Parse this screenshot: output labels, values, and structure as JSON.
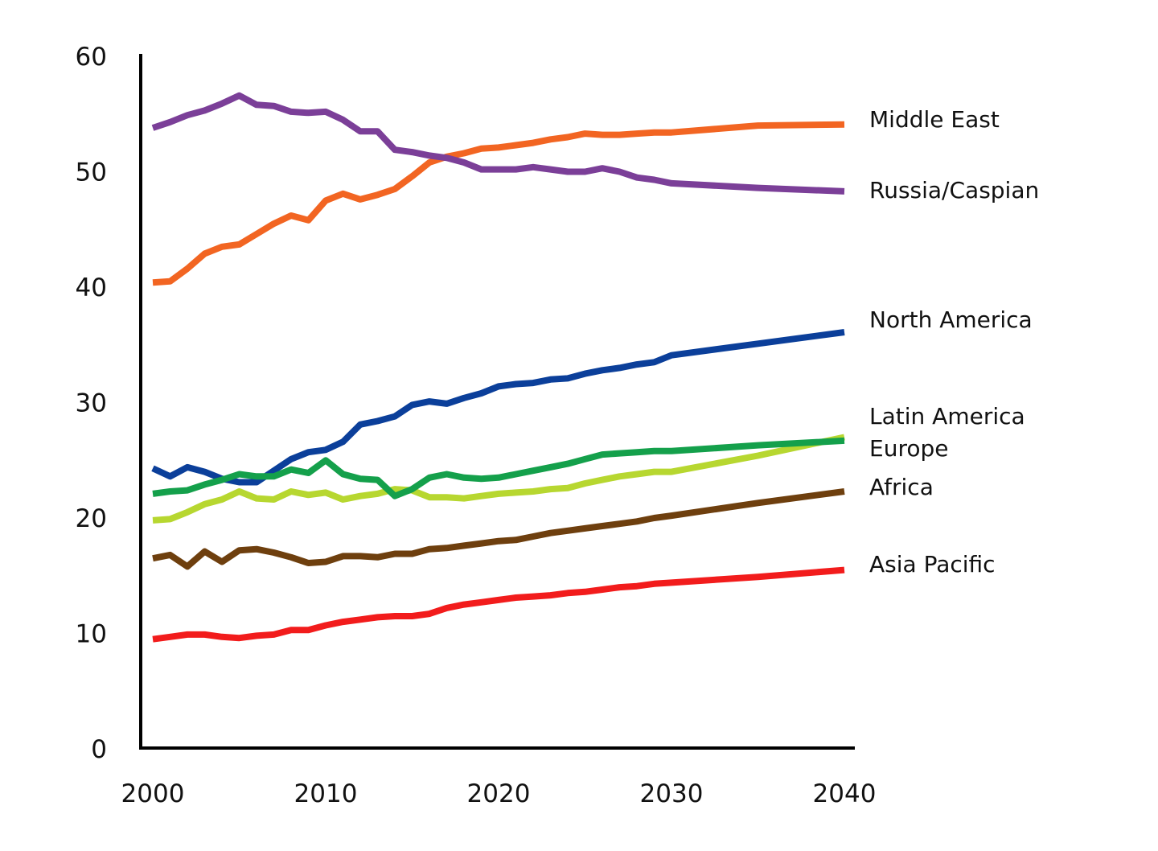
{
  "chart_data": {
    "type": "line",
    "title": "",
    "xlabel": "",
    "ylabel": "",
    "xlim": [
      2000,
      2040
    ],
    "ylim": [
      0,
      60
    ],
    "grid": false,
    "x_ticks": [
      "2000",
      "2010",
      "2020",
      "2030",
      "2040"
    ],
    "y_ticks": [
      "0",
      "10",
      "20",
      "30",
      "40",
      "50",
      "60"
    ],
    "series": [
      {
        "name": "Middle East",
        "color": "#F26522",
        "points": [
          [
            2000,
            40.4
          ],
          [
            2001,
            40.5
          ],
          [
            2002,
            41.6
          ],
          [
            2003,
            42.9
          ],
          [
            2004,
            43.5
          ],
          [
            2005,
            43.7
          ],
          [
            2006,
            44.6
          ],
          [
            2007,
            45.5
          ],
          [
            2008,
            46.2
          ],
          [
            2009,
            45.8
          ],
          [
            2010,
            47.5
          ],
          [
            2011,
            48.1
          ],
          [
            2012,
            47.6
          ],
          [
            2013,
            48.0
          ],
          [
            2014,
            48.5
          ],
          [
            2015,
            49.6
          ],
          [
            2016,
            50.8
          ],
          [
            2017,
            51.3
          ],
          [
            2018,
            51.6
          ],
          [
            2019,
            52.0
          ],
          [
            2020,
            52.1
          ],
          [
            2021,
            52.3
          ],
          [
            2022,
            52.5
          ],
          [
            2023,
            52.8
          ],
          [
            2024,
            53.0
          ],
          [
            2025,
            53.3
          ],
          [
            2026,
            53.2
          ],
          [
            2027,
            53.2
          ],
          [
            2028,
            53.3
          ],
          [
            2029,
            53.4
          ],
          [
            2030,
            53.4
          ],
          [
            2035,
            54.0
          ],
          [
            2040,
            54.1
          ]
        ]
      },
      {
        "name": "Russia/Caspian",
        "color": "#7B3F98",
        "points": [
          [
            2000,
            53.8
          ],
          [
            2001,
            54.3
          ],
          [
            2002,
            54.9
          ],
          [
            2003,
            55.3
          ],
          [
            2004,
            55.9
          ],
          [
            2005,
            56.6
          ],
          [
            2006,
            55.8
          ],
          [
            2007,
            55.7
          ],
          [
            2008,
            55.2
          ],
          [
            2009,
            55.1
          ],
          [
            2010,
            55.2
          ],
          [
            2011,
            54.5
          ],
          [
            2012,
            53.5
          ],
          [
            2013,
            53.5
          ],
          [
            2014,
            51.9
          ],
          [
            2015,
            51.7
          ],
          [
            2016,
            51.4
          ],
          [
            2017,
            51.2
          ],
          [
            2018,
            50.8
          ],
          [
            2019,
            50.2
          ],
          [
            2020,
            50.2
          ],
          [
            2021,
            50.2
          ],
          [
            2022,
            50.4
          ],
          [
            2023,
            50.2
          ],
          [
            2024,
            50.0
          ],
          [
            2025,
            50.0
          ],
          [
            2026,
            50.3
          ],
          [
            2027,
            50.0
          ],
          [
            2028,
            49.5
          ],
          [
            2029,
            49.3
          ],
          [
            2030,
            49.0
          ],
          [
            2035,
            48.6
          ],
          [
            2040,
            48.3
          ]
        ]
      },
      {
        "name": "North America",
        "color": "#0B3F9A",
        "points": [
          [
            2000,
            24.3
          ],
          [
            2001,
            23.6
          ],
          [
            2002,
            24.4
          ],
          [
            2003,
            24.0
          ],
          [
            2004,
            23.4
          ],
          [
            2005,
            23.1
          ],
          [
            2006,
            23.1
          ],
          [
            2007,
            24.1
          ],
          [
            2008,
            25.1
          ],
          [
            2009,
            25.7
          ],
          [
            2010,
            25.9
          ],
          [
            2011,
            26.6
          ],
          [
            2012,
            28.1
          ],
          [
            2013,
            28.4
          ],
          [
            2014,
            28.8
          ],
          [
            2015,
            29.8
          ],
          [
            2016,
            30.1
          ],
          [
            2017,
            29.9
          ],
          [
            2018,
            30.4
          ],
          [
            2019,
            30.8
          ],
          [
            2020,
            31.4
          ],
          [
            2021,
            31.6
          ],
          [
            2022,
            31.7
          ],
          [
            2023,
            32.0
          ],
          [
            2024,
            32.1
          ],
          [
            2025,
            32.5
          ],
          [
            2026,
            32.8
          ],
          [
            2027,
            33.0
          ],
          [
            2028,
            33.3
          ],
          [
            2029,
            33.5
          ],
          [
            2030,
            34.1
          ],
          [
            2035,
            35.1
          ],
          [
            2040,
            36.1
          ]
        ]
      },
      {
        "name": "Latin America",
        "color": "#B7D730",
        "points": [
          [
            2000,
            19.8
          ],
          [
            2001,
            19.9
          ],
          [
            2002,
            20.5
          ],
          [
            2003,
            21.2
          ],
          [
            2004,
            21.6
          ],
          [
            2005,
            22.3
          ],
          [
            2006,
            21.7
          ],
          [
            2007,
            21.6
          ],
          [
            2008,
            22.3
          ],
          [
            2009,
            22.0
          ],
          [
            2010,
            22.2
          ],
          [
            2011,
            21.6
          ],
          [
            2012,
            21.9
          ],
          [
            2013,
            22.1
          ],
          [
            2014,
            22.5
          ],
          [
            2015,
            22.4
          ],
          [
            2016,
            21.8
          ],
          [
            2017,
            21.8
          ],
          [
            2018,
            21.7
          ],
          [
            2019,
            21.9
          ],
          [
            2020,
            22.1
          ],
          [
            2021,
            22.2
          ],
          [
            2022,
            22.3
          ],
          [
            2023,
            22.5
          ],
          [
            2024,
            22.6
          ],
          [
            2025,
            23.0
          ],
          [
            2026,
            23.3
          ],
          [
            2027,
            23.6
          ],
          [
            2028,
            23.8
          ],
          [
            2029,
            24.0
          ],
          [
            2030,
            24.0
          ],
          [
            2035,
            25.4
          ],
          [
            2040,
            27.0
          ]
        ]
      },
      {
        "name": "Europe",
        "color": "#14A04B",
        "points": [
          [
            2000,
            22.1
          ],
          [
            2001,
            22.3
          ],
          [
            2002,
            22.4
          ],
          [
            2003,
            22.9
          ],
          [
            2004,
            23.3
          ],
          [
            2005,
            23.8
          ],
          [
            2006,
            23.6
          ],
          [
            2007,
            23.6
          ],
          [
            2008,
            24.2
          ],
          [
            2009,
            23.9
          ],
          [
            2010,
            25.0
          ],
          [
            2011,
            23.8
          ],
          [
            2012,
            23.4
          ],
          [
            2013,
            23.3
          ],
          [
            2014,
            21.9
          ],
          [
            2015,
            22.5
          ],
          [
            2016,
            23.5
          ],
          [
            2017,
            23.8
          ],
          [
            2018,
            23.5
          ],
          [
            2019,
            23.4
          ],
          [
            2020,
            23.5
          ],
          [
            2021,
            23.8
          ],
          [
            2022,
            24.1
          ],
          [
            2023,
            24.4
          ],
          [
            2024,
            24.7
          ],
          [
            2025,
            25.1
          ],
          [
            2026,
            25.5
          ],
          [
            2027,
            25.6
          ],
          [
            2028,
            25.7
          ],
          [
            2029,
            25.8
          ],
          [
            2030,
            25.8
          ],
          [
            2035,
            26.3
          ],
          [
            2040,
            26.7
          ]
        ]
      },
      {
        "name": "Africa",
        "color": "#6E3F0E",
        "points": [
          [
            2000,
            16.5
          ],
          [
            2001,
            16.8
          ],
          [
            2002,
            15.8
          ],
          [
            2003,
            17.1
          ],
          [
            2004,
            16.2
          ],
          [
            2005,
            17.2
          ],
          [
            2006,
            17.3
          ],
          [
            2007,
            17.0
          ],
          [
            2008,
            16.6
          ],
          [
            2009,
            16.1
          ],
          [
            2010,
            16.2
          ],
          [
            2011,
            16.7
          ],
          [
            2012,
            16.7
          ],
          [
            2013,
            16.6
          ],
          [
            2014,
            16.9
          ],
          [
            2015,
            16.9
          ],
          [
            2016,
            17.3
          ],
          [
            2017,
            17.4
          ],
          [
            2018,
            17.6
          ],
          [
            2019,
            17.8
          ],
          [
            2020,
            18.0
          ],
          [
            2021,
            18.1
          ],
          [
            2022,
            18.4
          ],
          [
            2023,
            18.7
          ],
          [
            2024,
            18.9
          ],
          [
            2025,
            19.1
          ],
          [
            2026,
            19.3
          ],
          [
            2027,
            19.5
          ],
          [
            2028,
            19.7
          ],
          [
            2029,
            20.0
          ],
          [
            2030,
            20.2
          ],
          [
            2035,
            21.3
          ],
          [
            2040,
            22.3
          ]
        ]
      },
      {
        "name": "Asia Pacific",
        "color": "#F21C1C",
        "points": [
          [
            2000,
            9.5
          ],
          [
            2001,
            9.7
          ],
          [
            2002,
            9.9
          ],
          [
            2003,
            9.9
          ],
          [
            2004,
            9.7
          ],
          [
            2005,
            9.6
          ],
          [
            2006,
            9.8
          ],
          [
            2007,
            9.9
          ],
          [
            2008,
            10.3
          ],
          [
            2009,
            10.3
          ],
          [
            2010,
            10.7
          ],
          [
            2011,
            11.0
          ],
          [
            2012,
            11.2
          ],
          [
            2013,
            11.4
          ],
          [
            2014,
            11.5
          ],
          [
            2015,
            11.5
          ],
          [
            2016,
            11.7
          ],
          [
            2017,
            12.2
          ],
          [
            2018,
            12.5
          ],
          [
            2019,
            12.7
          ],
          [
            2020,
            12.9
          ],
          [
            2021,
            13.1
          ],
          [
            2022,
            13.2
          ],
          [
            2023,
            13.3
          ],
          [
            2024,
            13.5
          ],
          [
            2025,
            13.6
          ],
          [
            2026,
            13.8
          ],
          [
            2027,
            14.0
          ],
          [
            2028,
            14.1
          ],
          [
            2029,
            14.3
          ],
          [
            2030,
            14.4
          ],
          [
            2035,
            14.9
          ],
          [
            2040,
            15.5
          ]
        ]
      }
    ],
    "legend": {
      "placement": "right",
      "entries": [
        "Middle East",
        "Russia/Caspian",
        "North America",
        "Latin America",
        "Europe",
        "Africa",
        "Asia Pacific"
      ]
    }
  }
}
